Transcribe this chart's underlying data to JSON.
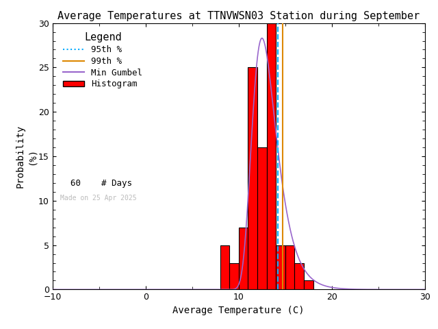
{
  "title": "Average Temperatures at TTNVWSN03 Station during September",
  "xlabel": "Average Temperature (C)",
  "ylabel": "Probability\n(%)",
  "xlim": [
    -10,
    30
  ],
  "ylim": [
    0,
    30
  ],
  "xticks": [
    -10,
    0,
    10,
    20,
    30
  ],
  "yticks": [
    0,
    5,
    10,
    15,
    20,
    25,
    30
  ],
  "bar_edges": [
    8,
    9,
    10,
    11,
    12,
    13,
    14,
    15,
    16,
    17,
    18
  ],
  "bar_heights": [
    5,
    3,
    7,
    25,
    16,
    30,
    5,
    5,
    3,
    1
  ],
  "bar_color": "#ff0000",
  "bar_edgecolor": "#000000",
  "gumbel_color": "#9966cc",
  "gumbel_mu": 12.5,
  "gumbel_beta": 1.3,
  "gumbel_scale": 100.0,
  "p95_color": "#00aaff",
  "p99_color": "#dd8800",
  "p95_value": 14.2,
  "p99_value": 14.7,
  "n_days": 60,
  "watermark": "Made on 25 Apr 2025",
  "watermark_color": "#bbbbbb",
  "background_color": "#ffffff",
  "title_fontsize": 11,
  "axis_fontsize": 10,
  "tick_fontsize": 9,
  "legend_title": "Legend",
  "legend_fontsize": 9
}
